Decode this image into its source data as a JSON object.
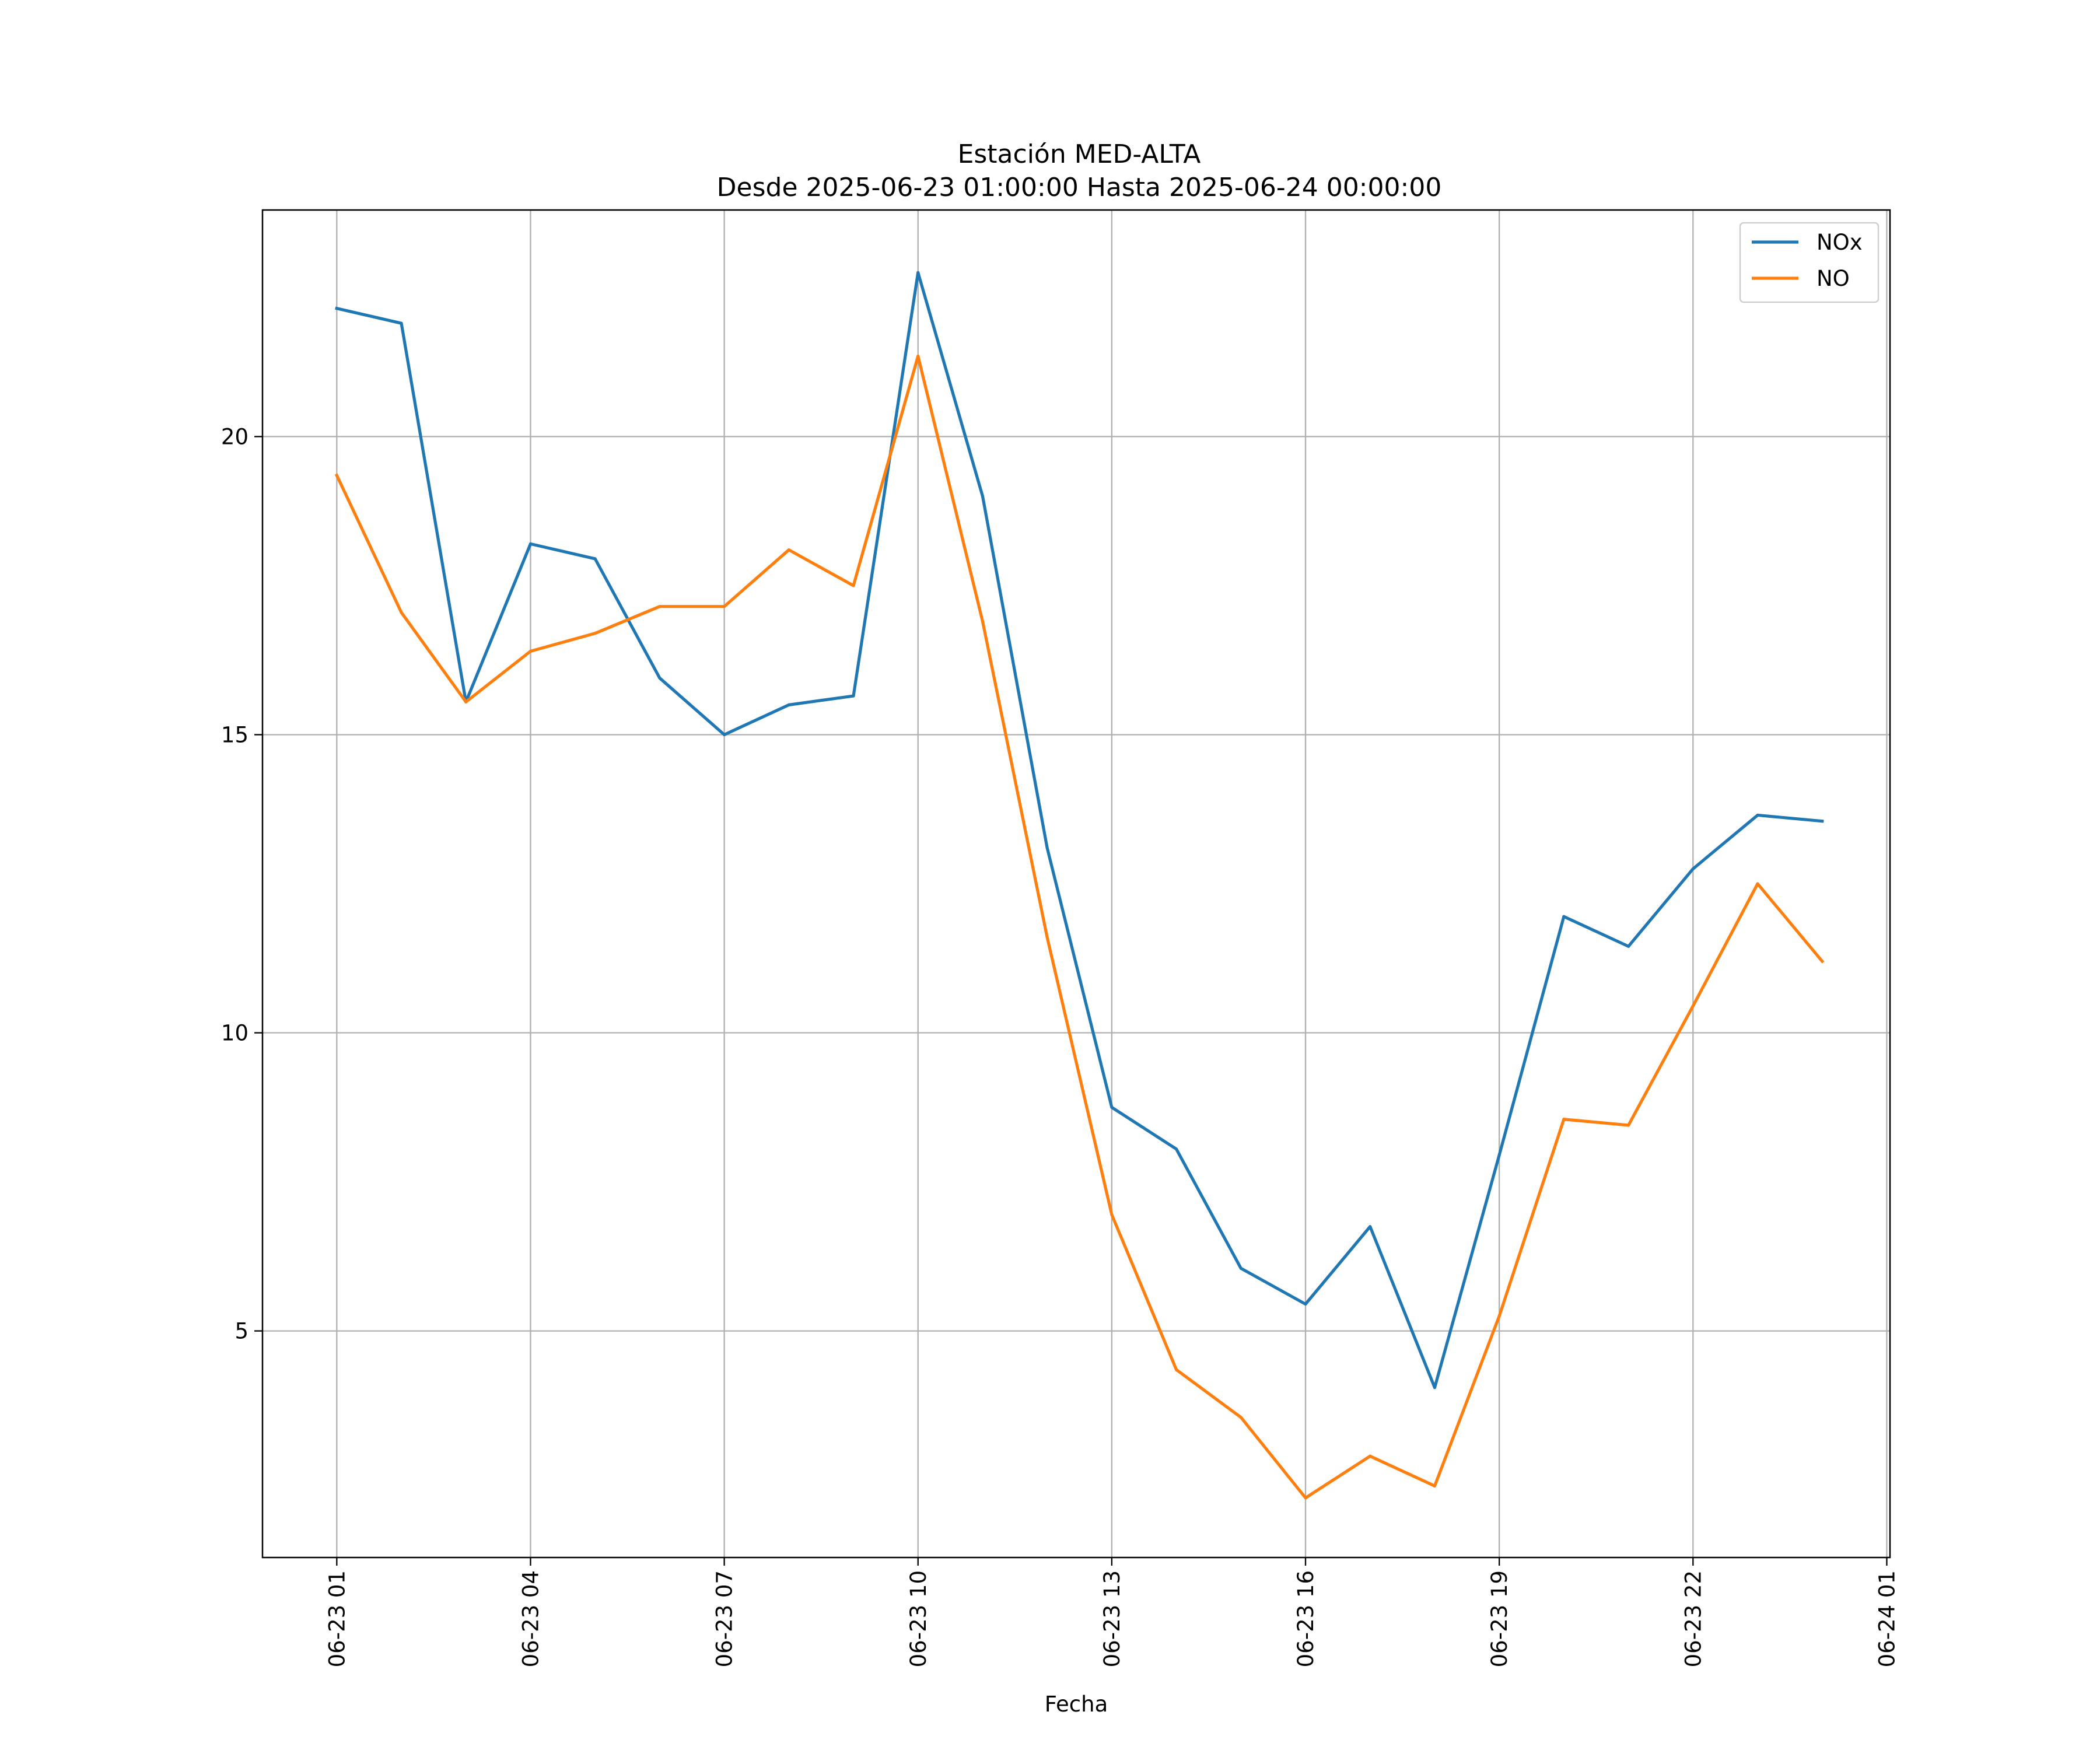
{
  "chart_data": {
    "type": "line",
    "title": "Estación MED-ALTA",
    "subtitle": "Desde 2025-06-23 01:00:00 Hasta 2025-06-24 00:00:00",
    "xlabel": "Fecha",
    "ylabel": "",
    "x": [
      "06-23 01:00",
      "06-23 02:00",
      "06-23 03:00",
      "06-23 04:00",
      "06-23 05:00",
      "06-23 06:00",
      "06-23 07:00",
      "06-23 08:00",
      "06-23 09:00",
      "06-23 10:00",
      "06-23 11:00",
      "06-23 12:00",
      "06-23 13:00",
      "06-23 14:00",
      "06-23 15:00",
      "06-23 16:00",
      "06-23 17:00",
      "06-23 18:00",
      "06-23 19:00",
      "06-23 20:00",
      "06-23 21:00",
      "06-23 22:00",
      "06-23 23:00",
      "06-24 00:00"
    ],
    "x_ticks": [
      "06-23 01",
      "06-23 04",
      "06-23 07",
      "06-23 10",
      "06-23 13",
      "06-23 16",
      "06-23 19",
      "06-23 22",
      "06-24 01"
    ],
    "x_tick_hours": [
      0,
      3,
      6,
      9,
      12,
      15,
      18,
      21,
      24
    ],
    "x_range_hours": [
      -1.15,
      24.05
    ],
    "y_ticks": [
      "5",
      "10",
      "15",
      "20"
    ],
    "y_tick_values": [
      5,
      10,
      15,
      20
    ],
    "ylim": [
      1.2,
      23.8
    ],
    "grid": true,
    "legend_position": "top-right",
    "series": [
      {
        "name": "NOx",
        "color": "#1f77b4",
        "values": [
          22.15,
          21.9,
          15.55,
          18.2,
          17.95,
          15.95,
          15.0,
          15.5,
          15.65,
          22.75,
          19.0,
          13.1,
          8.75,
          8.05,
          6.05,
          5.45,
          6.75,
          4.05,
          7.95,
          11.95,
          11.45,
          12.75,
          13.65,
          13.55
        ]
      },
      {
        "name": "NO",
        "color": "#ff7f0e",
        "values": [
          19.35,
          17.05,
          15.55,
          16.4,
          16.7,
          17.15,
          17.15,
          18.1,
          17.5,
          21.35,
          16.9,
          11.6,
          6.95,
          4.35,
          3.55,
          2.2,
          2.9,
          2.4,
          5.25,
          8.55,
          8.45,
          10.45,
          12.5,
          11.2
        ]
      }
    ]
  }
}
